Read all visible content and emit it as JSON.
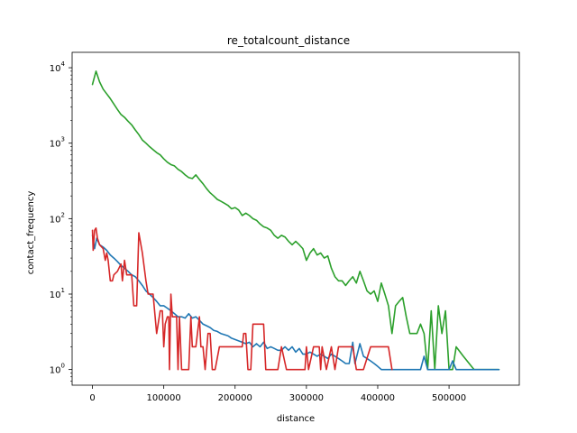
{
  "chart_data": {
    "type": "line",
    "title": "re_totalcount_distance",
    "xlabel": "distance",
    "ylabel": "contact_frequency",
    "yscale": "log",
    "xlim": [
      -28500,
      598500
    ],
    "ylim": [
      0.62,
      16000
    ],
    "grid": false,
    "xticks": [
      {
        "value": 0,
        "label": "0"
      },
      {
        "value": 100000,
        "label": "100000"
      },
      {
        "value": 200000,
        "label": "200000"
      },
      {
        "value": 300000,
        "label": "300000"
      },
      {
        "value": 400000,
        "label": "400000"
      },
      {
        "value": 500000,
        "label": "500000"
      }
    ],
    "yticks": [
      {
        "value": 1,
        "base": "10",
        "exp": "0"
      },
      {
        "value": 10,
        "base": "10",
        "exp": "1"
      },
      {
        "value": 100,
        "base": "10",
        "exp": "2"
      },
      {
        "value": 1000,
        "base": "10",
        "exp": "3"
      },
      {
        "value": 10000,
        "base": "10",
        "exp": "4"
      }
    ],
    "series": [
      {
        "color": "#2ca02c",
        "points": [
          [
            0,
            6000
          ],
          [
            5000,
            9000
          ],
          [
            10000,
            6500
          ],
          [
            15000,
            5200
          ],
          [
            20000,
            4500
          ],
          [
            25000,
            3900
          ],
          [
            30000,
            3300
          ],
          [
            35000,
            2800
          ],
          [
            40000,
            2400
          ],
          [
            45000,
            2200
          ],
          [
            50000,
            1950
          ],
          [
            55000,
            1750
          ],
          [
            60000,
            1500
          ],
          [
            65000,
            1300
          ],
          [
            70000,
            1100
          ],
          [
            75000,
            1000
          ],
          [
            80000,
            900
          ],
          [
            85000,
            820
          ],
          [
            90000,
            750
          ],
          [
            95000,
            700
          ],
          [
            100000,
            620
          ],
          [
            105000,
            560
          ],
          [
            110000,
            520
          ],
          [
            115000,
            500
          ],
          [
            120000,
            450
          ],
          [
            125000,
            420
          ],
          [
            130000,
            380
          ],
          [
            135000,
            350
          ],
          [
            140000,
            340
          ],
          [
            145000,
            380
          ],
          [
            150000,
            330
          ],
          [
            155000,
            290
          ],
          [
            160000,
            250
          ],
          [
            165000,
            220
          ],
          [
            170000,
            200
          ],
          [
            175000,
            180
          ],
          [
            180000,
            170
          ],
          [
            185000,
            160
          ],
          [
            190000,
            150
          ],
          [
            195000,
            135
          ],
          [
            200000,
            140
          ],
          [
            205000,
            130
          ],
          [
            210000,
            110
          ],
          [
            215000,
            118
          ],
          [
            220000,
            110
          ],
          [
            225000,
            100
          ],
          [
            230000,
            95
          ],
          [
            235000,
            85
          ],
          [
            240000,
            78
          ],
          [
            245000,
            75
          ],
          [
            250000,
            70
          ],
          [
            255000,
            60
          ],
          [
            260000,
            55
          ],
          [
            265000,
            60
          ],
          [
            270000,
            57
          ],
          [
            275000,
            50
          ],
          [
            280000,
            45
          ],
          [
            285000,
            50
          ],
          [
            290000,
            45
          ],
          [
            295000,
            40
          ],
          [
            300000,
            28
          ],
          [
            305000,
            35
          ],
          [
            310000,
            40
          ],
          [
            315000,
            33
          ],
          [
            320000,
            35
          ],
          [
            325000,
            30
          ],
          [
            330000,
            32
          ],
          [
            335000,
            22
          ],
          [
            340000,
            17
          ],
          [
            345000,
            15
          ],
          [
            350000,
            15
          ],
          [
            355000,
            13
          ],
          [
            360000,
            15
          ],
          [
            365000,
            17
          ],
          [
            370000,
            14
          ],
          [
            375000,
            20
          ],
          [
            380000,
            15
          ],
          [
            385000,
            11
          ],
          [
            390000,
            10
          ],
          [
            395000,
            11
          ],
          [
            400000,
            8
          ],
          [
            405000,
            14
          ],
          [
            410000,
            10
          ],
          [
            415000,
            7
          ],
          [
            420000,
            3
          ],
          [
            425000,
            7
          ],
          [
            430000,
            8
          ],
          [
            435000,
            9
          ],
          [
            440000,
            5
          ],
          [
            445000,
            3
          ],
          [
            450000,
            3
          ],
          [
            455000,
            3
          ],
          [
            460000,
            4
          ],
          [
            465000,
            3
          ],
          [
            470000,
            1
          ],
          [
            475000,
            6
          ],
          [
            480000,
            1
          ],
          [
            485000,
            7
          ],
          [
            490000,
            3
          ],
          [
            495000,
            6
          ],
          [
            500000,
            1
          ],
          [
            505000,
            1
          ],
          [
            510000,
            2
          ],
          [
            520000,
            1.5
          ],
          [
            535000,
            1
          ],
          [
            550000,
            1
          ],
          [
            570000,
            1
          ]
        ]
      },
      {
        "color": "#1f77b4",
        "points": [
          [
            0,
            60
          ],
          [
            3000,
            40
          ],
          [
            6000,
            55
          ],
          [
            10000,
            45
          ],
          [
            15000,
            42
          ],
          [
            20000,
            38
          ],
          [
            25000,
            33
          ],
          [
            30000,
            30
          ],
          [
            35000,
            27
          ],
          [
            40000,
            24
          ],
          [
            45000,
            22
          ],
          [
            50000,
            20
          ],
          [
            55000,
            18
          ],
          [
            60000,
            17
          ],
          [
            65000,
            15
          ],
          [
            70000,
            13
          ],
          [
            75000,
            11
          ],
          [
            80000,
            10
          ],
          [
            85000,
            9
          ],
          [
            90000,
            8
          ],
          [
            95000,
            7
          ],
          [
            100000,
            7
          ],
          [
            105000,
            6.5
          ],
          [
            110000,
            6
          ],
          [
            115000,
            5.5
          ],
          [
            120000,
            5
          ],
          [
            125000,
            5
          ],
          [
            130000,
            4.8
          ],
          [
            135000,
            5.5
          ],
          [
            140000,
            4.8
          ],
          [
            145000,
            5
          ],
          [
            150000,
            4.5
          ],
          [
            155000,
            4
          ],
          [
            160000,
            3.8
          ],
          [
            165000,
            3.6
          ],
          [
            170000,
            3.3
          ],
          [
            175000,
            3.2
          ],
          [
            180000,
            3
          ],
          [
            185000,
            2.9
          ],
          [
            190000,
            2.8
          ],
          [
            195000,
            2.6
          ],
          [
            200000,
            2.5
          ],
          [
            205000,
            2.4
          ],
          [
            210000,
            2.3
          ],
          [
            215000,
            2.2
          ],
          [
            220000,
            2.3
          ],
          [
            225000,
            2
          ],
          [
            230000,
            2.2
          ],
          [
            235000,
            2
          ],
          [
            240000,
            2.3
          ],
          [
            245000,
            1.9
          ],
          [
            250000,
            2
          ],
          [
            255000,
            1.9
          ],
          [
            260000,
            1.8
          ],
          [
            265000,
            1.8
          ],
          [
            270000,
            2
          ],
          [
            275000,
            1.8
          ],
          [
            280000,
            2
          ],
          [
            285000,
            1.7
          ],
          [
            290000,
            1.9
          ],
          [
            295000,
            1.6
          ],
          [
            300000,
            1.6
          ],
          [
            305000,
            1.7
          ],
          [
            310000,
            1.6
          ],
          [
            315000,
            1.5
          ],
          [
            320000,
            1.6
          ],
          [
            325000,
            1.5
          ],
          [
            330000,
            1.4
          ],
          [
            335000,
            1.6
          ],
          [
            340000,
            1.5
          ],
          [
            345000,
            1.4
          ],
          [
            350000,
            1.3
          ],
          [
            355000,
            1.2
          ],
          [
            360000,
            1.2
          ],
          [
            365000,
            2.3
          ],
          [
            368000,
            1.2
          ],
          [
            375000,
            2.2
          ],
          [
            380000,
            1.5
          ],
          [
            385000,
            1.4
          ],
          [
            390000,
            1.3
          ],
          [
            395000,
            1.2
          ],
          [
            400000,
            1.1
          ],
          [
            405000,
            1
          ],
          [
            415000,
            1
          ],
          [
            420000,
            1
          ],
          [
            440000,
            1
          ],
          [
            460000,
            1
          ],
          [
            465000,
            1.5
          ],
          [
            470000,
            1
          ],
          [
            480000,
            1
          ],
          [
            490000,
            1
          ],
          [
            500000,
            1
          ],
          [
            505000,
            1.3
          ],
          [
            510000,
            1
          ],
          [
            520000,
            1
          ],
          [
            530000,
            1
          ],
          [
            545000,
            1
          ],
          [
            570000,
            1
          ]
        ]
      },
      {
        "color": "#d62728",
        "points": [
          [
            0,
            70
          ],
          [
            1000,
            38
          ],
          [
            3000,
            70
          ],
          [
            5000,
            75
          ],
          [
            7000,
            55
          ],
          [
            10000,
            45
          ],
          [
            15000,
            40
          ],
          [
            18000,
            28
          ],
          [
            20000,
            35
          ],
          [
            22000,
            28
          ],
          [
            25000,
            15
          ],
          [
            28000,
            15
          ],
          [
            30000,
            18
          ],
          [
            35000,
            20
          ],
          [
            40000,
            25
          ],
          [
            42000,
            15
          ],
          [
            45000,
            28
          ],
          [
            48000,
            18
          ],
          [
            52000,
            18
          ],
          [
            55000,
            18
          ],
          [
            58000,
            7
          ],
          [
            62000,
            7
          ],
          [
            65000,
            65
          ],
          [
            70000,
            35
          ],
          [
            75000,
            15
          ],
          [
            78000,
            10
          ],
          [
            85000,
            10
          ],
          [
            90000,
            3
          ],
          [
            95000,
            6
          ],
          [
            98000,
            6
          ],
          [
            100000,
            2
          ],
          [
            102000,
            4
          ],
          [
            105000,
            5
          ],
          [
            107000,
            5
          ],
          [
            108000,
            1
          ],
          [
            110000,
            10
          ],
          [
            112000,
            5
          ],
          [
            115000,
            5
          ],
          [
            118000,
            5
          ],
          [
            120000,
            1
          ],
          [
            122000,
            5
          ],
          [
            125000,
            1
          ],
          [
            130000,
            1
          ],
          [
            135000,
            1
          ],
          [
            138000,
            5
          ],
          [
            140000,
            2
          ],
          [
            145000,
            2
          ],
          [
            150000,
            5
          ],
          [
            152000,
            2
          ],
          [
            155000,
            2
          ],
          [
            158000,
            1
          ],
          [
            162000,
            3
          ],
          [
            165000,
            3
          ],
          [
            168000,
            1
          ],
          [
            172000,
            1
          ],
          [
            178000,
            2
          ],
          [
            185000,
            2
          ],
          [
            200000,
            2
          ],
          [
            205000,
            2
          ],
          [
            210000,
            2
          ],
          [
            212000,
            3
          ],
          [
            215000,
            3
          ],
          [
            218000,
            1
          ],
          [
            222000,
            1
          ],
          [
            225000,
            4
          ],
          [
            230000,
            4
          ],
          [
            235000,
            4
          ],
          [
            240000,
            4
          ],
          [
            243000,
            1
          ],
          [
            255000,
            1
          ],
          [
            260000,
            1
          ],
          [
            265000,
            2
          ],
          [
            272000,
            1
          ],
          [
            285000,
            1
          ],
          [
            292000,
            1
          ],
          [
            298000,
            1
          ],
          [
            300000,
            2
          ],
          [
            303000,
            1
          ],
          [
            310000,
            2
          ],
          [
            318000,
            2
          ],
          [
            320000,
            1
          ],
          [
            322000,
            2
          ],
          [
            328000,
            1
          ],
          [
            335000,
            2
          ],
          [
            340000,
            1
          ],
          [
            345000,
            2
          ],
          [
            350000,
            2
          ],
          [
            355000,
            2
          ],
          [
            360000,
            2
          ],
          [
            365000,
            2
          ],
          [
            370000,
            1
          ],
          [
            380000,
            1
          ],
          [
            390000,
            2
          ],
          [
            395000,
            2
          ],
          [
            400000,
            2
          ],
          [
            405000,
            2
          ],
          [
            410000,
            2
          ],
          [
            415000,
            2
          ],
          [
            420000,
            1
          ]
        ]
      }
    ]
  }
}
